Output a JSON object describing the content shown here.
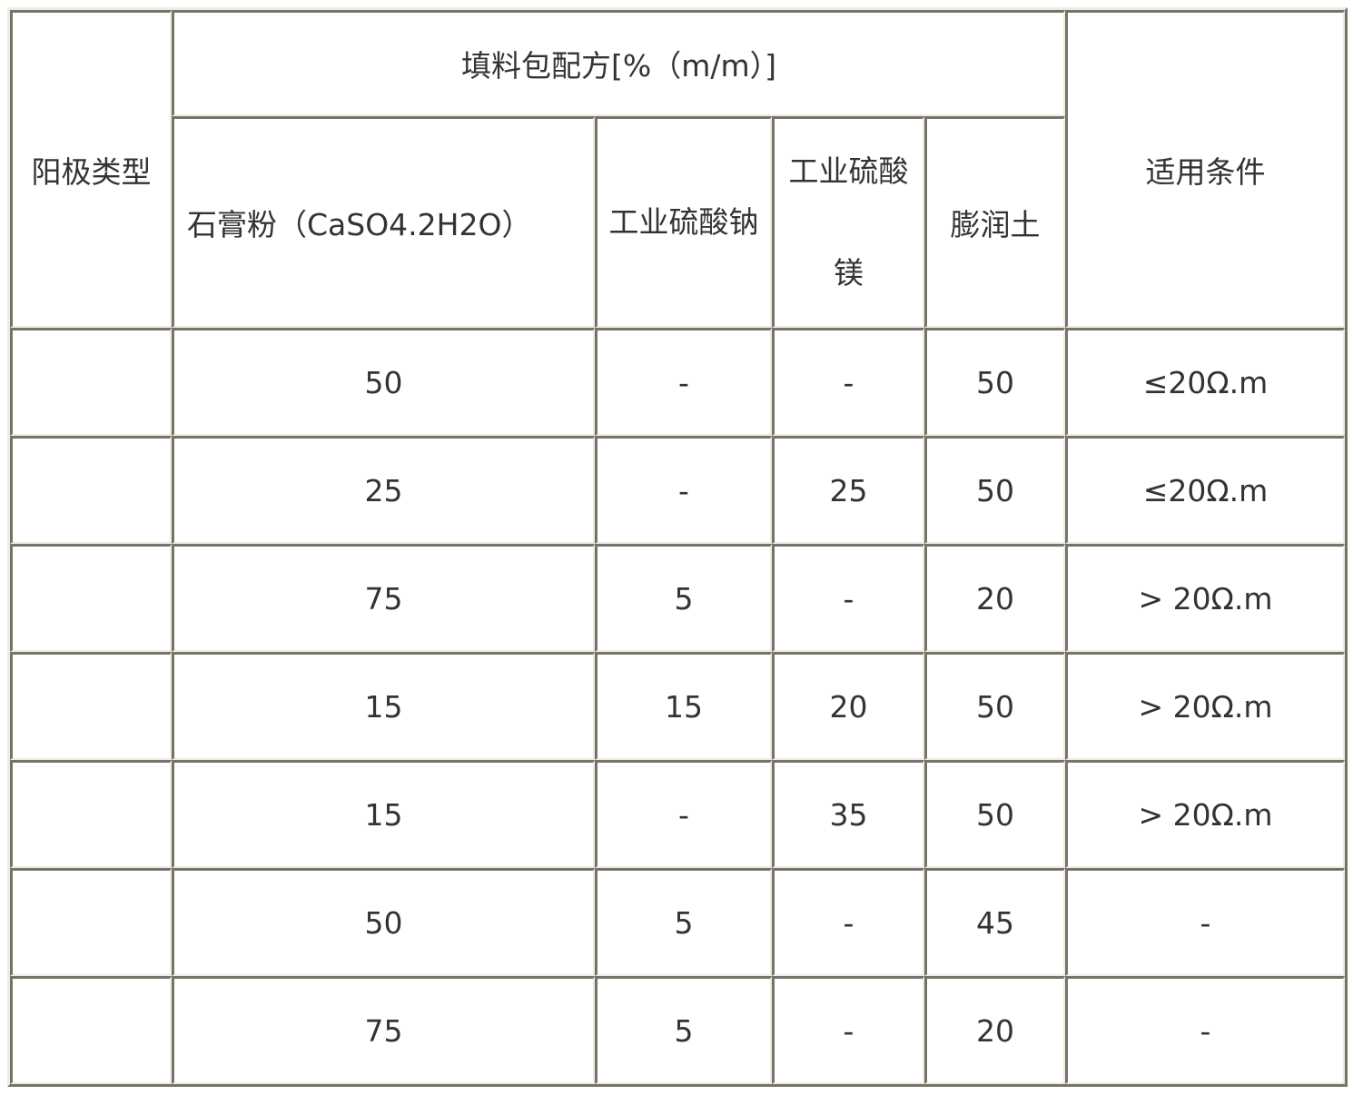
{
  "table": {
    "header": {
      "anode_type": "阳极类型",
      "formula": "填料包配方[%（m/m）]",
      "conditions": "适用条件",
      "cols": [
        "石膏粉（CaSO4.2H2O）",
        "工业硫酸钠",
        "工业硫酸镁",
        "膨润土"
      ]
    },
    "rows": [
      [
        "",
        "50",
        "-",
        "-",
        "50",
        "≤20Ω.m"
      ],
      [
        "",
        "25",
        "-",
        "25",
        "50",
        "≤20Ω.m"
      ],
      [
        "",
        "75",
        "5",
        "-",
        "20",
        "> 20Ω.m"
      ],
      [
        "",
        "15",
        "15",
        "20",
        "50",
        "> 20Ω.m"
      ],
      [
        "",
        "15",
        "-",
        "35",
        "50",
        "> 20Ω.m"
      ],
      [
        "",
        "50",
        "5",
        "-",
        "45",
        "-"
      ],
      [
        "",
        "75",
        "5",
        "-",
        "20",
        "-"
      ]
    ]
  }
}
